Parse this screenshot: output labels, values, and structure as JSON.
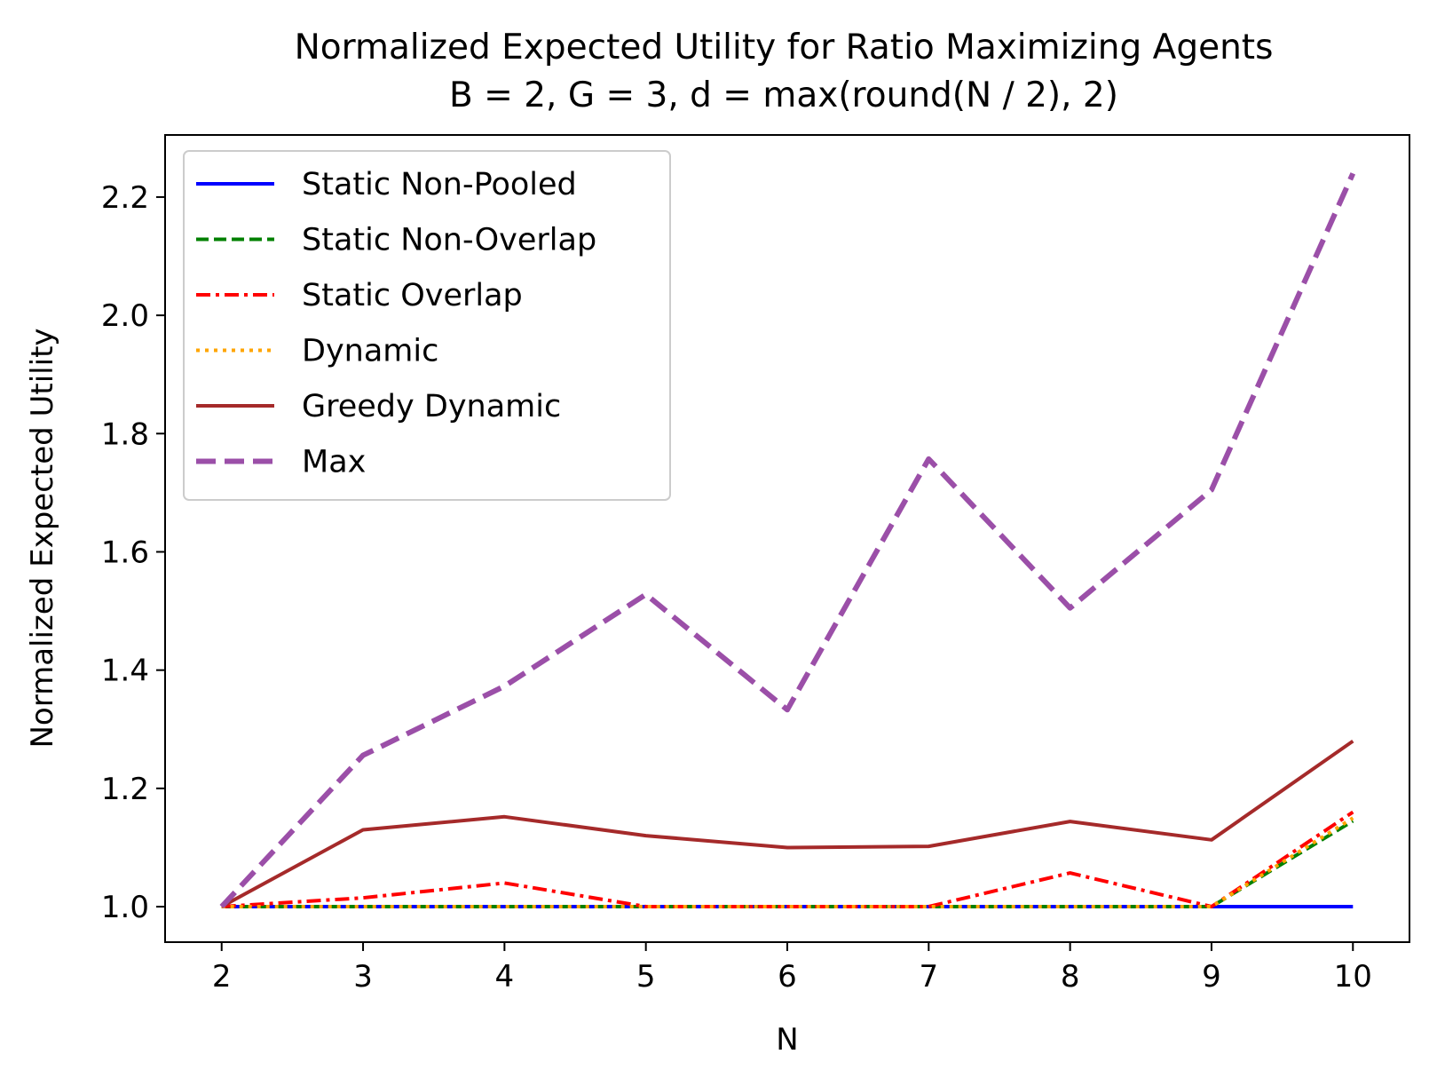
{
  "chart_data": {
    "type": "line",
    "title_lines": [
      "Normalized Expected Utility for Ratio Maximizing Agents",
      "B = 2, G = 3, d = max(round(N / 2), 2)"
    ],
    "xlabel": "N",
    "ylabel": "Normalized Expected Utility",
    "x": [
      2,
      3,
      4,
      5,
      6,
      7,
      8,
      9,
      10
    ],
    "xticks": [
      "2",
      "3",
      "4",
      "5",
      "6",
      "7",
      "8",
      "9",
      "10"
    ],
    "yticks": [
      "1.0",
      "1.2",
      "1.4",
      "1.6",
      "1.8",
      "2.0",
      "2.2"
    ],
    "xlim": [
      1.6,
      10.4
    ],
    "ylim": [
      0.94,
      2.305
    ],
    "grid": false,
    "legend_position": "upper-left",
    "series": [
      {
        "name": "Static Non-Pooled",
        "color": "#0000ff",
        "dash": "solid",
        "width": 4,
        "values": [
          1.0,
          1.0,
          1.0,
          1.0,
          1.0,
          1.0,
          1.0,
          1.0,
          1.0
        ]
      },
      {
        "name": "Static Non-Overlap",
        "color": "#008000",
        "dash": "dashed",
        "width": 4,
        "values": [
          1.0,
          1.0,
          1.0,
          1.0,
          1.0,
          1.0,
          1.0,
          1.0,
          1.145
        ]
      },
      {
        "name": "Static Overlap",
        "color": "#ff0000",
        "dash": "dashdot",
        "width": 4,
        "values": [
          1.0,
          1.015,
          1.04,
          1.0,
          1.0,
          1.0,
          1.057,
          1.0,
          1.16
        ]
      },
      {
        "name": "Dynamic",
        "color": "#ffa500",
        "dash": "dotted",
        "width": 4,
        "values": [
          1.0,
          1.0,
          1.0,
          1.0,
          1.0,
          1.0,
          1.0,
          1.0,
          1.15
        ]
      },
      {
        "name": "Greedy Dynamic",
        "color": "#a52a2a",
        "dash": "solid",
        "width": 4,
        "values": [
          1.0,
          1.13,
          1.152,
          1.12,
          1.1,
          1.102,
          1.144,
          1.113,
          1.28
        ]
      },
      {
        "name": "Max",
        "color": "#9b4fa8",
        "dash": "dashed-wide",
        "width": 6,
        "values": [
          1.0,
          1.256,
          1.373,
          1.528,
          1.333,
          1.757,
          1.505,
          1.705,
          2.24
        ]
      }
    ]
  }
}
